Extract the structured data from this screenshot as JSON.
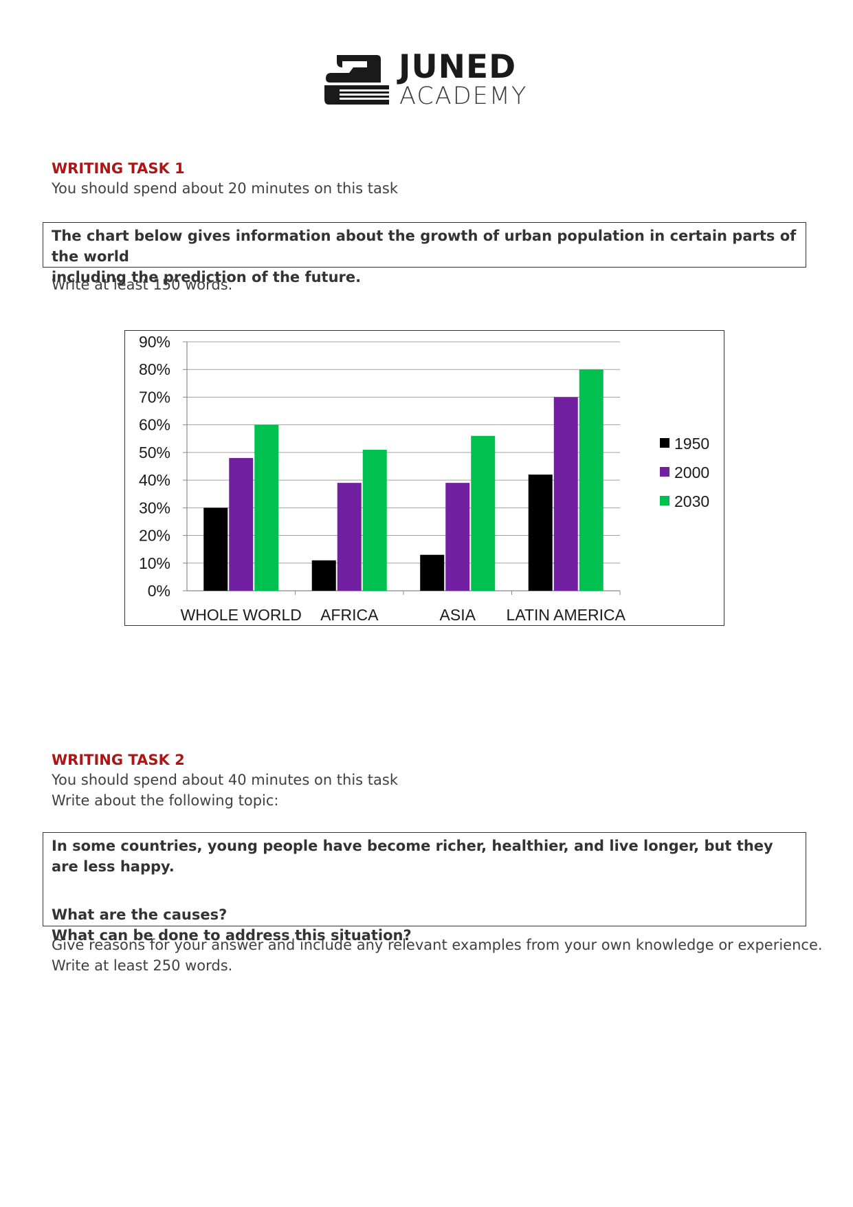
{
  "logo": {
    "line1": "JUNED",
    "line2": "ACADEMY"
  },
  "task1": {
    "heading": "WRITING TASK 1",
    "time": "You should spend about 20 minutes on this task",
    "prompt_line1": "The chart below gives information about the growth of urban population in certain parts of the world",
    "prompt_line2": "including the prediction of the future.",
    "word_count": "Write at least 150 words."
  },
  "chart_data": {
    "type": "bar",
    "categories": [
      "WHOLE WORLD",
      "AFRICA",
      "ASIA",
      "LATIN AMERICA"
    ],
    "series": [
      {
        "name": "1950",
        "color": "#000000",
        "values": [
          30,
          11,
          13,
          42
        ]
      },
      {
        "name": "2000",
        "color": "#7020a0",
        "values": [
          48,
          39,
          39,
          70
        ]
      },
      {
        "name": "2030",
        "color": "#00c050",
        "values": [
          60,
          51,
          56,
          80
        ]
      }
    ],
    "ylim": [
      0,
      90
    ],
    "yticks": [
      "0%",
      "10%",
      "20%",
      "30%",
      "40%",
      "50%",
      "60%",
      "70%",
      "80%",
      "90%"
    ],
    "grid": true,
    "legend": "right"
  },
  "task2": {
    "heading": "WRITING TASK 2",
    "time": "You should spend about 40 minutes on this task",
    "topic_intro": "Write about the following topic:",
    "prompt_line1": "In some countries, young people have become richer, healthier, and live longer, but they are less happy.",
    "question1": "What are the causes?",
    "question2": "What can be done to address this situation?",
    "instructions": "Give reasons for your answer and include any relevant examples from your own knowledge or experience.",
    "word_count": "Write at least 250 words."
  }
}
